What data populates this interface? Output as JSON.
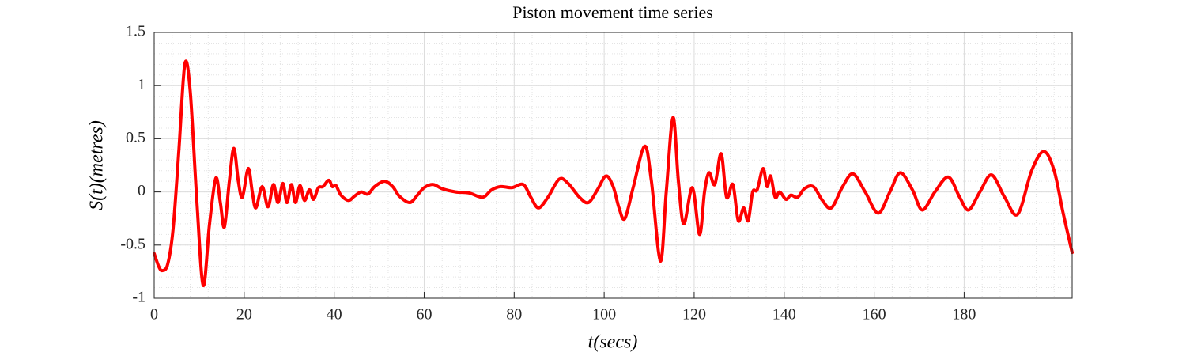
{
  "chart_data": {
    "type": "line",
    "title": "Piston movement time series",
    "x_label": "t(secs)",
    "y_label": "S(t)(metres)",
    "xlim": [
      0,
      204
    ],
    "ylim": [
      -1,
      1.5
    ],
    "xticks": [
      0,
      20,
      40,
      60,
      80,
      100,
      120,
      140,
      160,
      180
    ],
    "yticks": [
      -1,
      -0.5,
      0,
      0.5,
      1,
      1.5
    ],
    "grid": true,
    "minor_grid": true,
    "series": [
      {
        "color": "#ff0000",
        "x": [
          0,
          1,
          1.8,
          3,
          4.2,
          5.5,
          6.8,
          8,
          9.5,
          10.9,
          12.3,
          13.7,
          14.7,
          15.6,
          16.7,
          17.7,
          18.7,
          19.6,
          20.9,
          21.8,
          22.6,
          24,
          25.3,
          26.5,
          27.5,
          28.6,
          29.5,
          30.5,
          31.4,
          32.4,
          33.4,
          34.5,
          35.4,
          36.5,
          37.5,
          38.8,
          39.6,
          40.4,
          41.5,
          43.2,
          44.5,
          46,
          47.5,
          49,
          51.2,
          53,
          54.5,
          56.8,
          58.5,
          60,
          62,
          64,
          67,
          70,
          73,
          75,
          77,
          79.5,
          82,
          83.7,
          85.4,
          87.5,
          90,
          92,
          94.5,
          96.5,
          98.5,
          100.4,
          102,
          103.3,
          104.6,
          106.5,
          109,
          110.5,
          112.5,
          113.8,
          115.3,
          116.5,
          117.7,
          119.6,
          121.2,
          122.3,
          123.3,
          124.6,
          126,
          127.2,
          128.6,
          129.8,
          131,
          132,
          133,
          134,
          135.3,
          136.2,
          137,
          138,
          139,
          140.4,
          141.5,
          143,
          144.5,
          146.5,
          148.5,
          150.5,
          153,
          155.3,
          158,
          160.9,
          163.5,
          165.8,
          168.5,
          170.7,
          173.5,
          176.5,
          179,
          181,
          183.5,
          186.1,
          189,
          191.9,
          195,
          197.7,
          200,
          202,
          204
        ],
        "values": [
          -0.58,
          -0.7,
          -0.74,
          -0.68,
          -0.35,
          0.4,
          1.2,
          0.95,
          -0.1,
          -0.88,
          -0.3,
          0.13,
          -0.1,
          -0.33,
          0.1,
          0.41,
          0.1,
          -0.05,
          0.22,
          0.0,
          -0.15,
          0.05,
          -0.14,
          0.07,
          -0.1,
          0.08,
          -0.1,
          0.07,
          -0.1,
          0.06,
          -0.08,
          0.02,
          -0.07,
          0.04,
          0.05,
          0.11,
          0.05,
          0.06,
          -0.03,
          -0.08,
          -0.04,
          0.0,
          -0.02,
          0.05,
          0.1,
          0.05,
          -0.04,
          -0.1,
          -0.03,
          0.04,
          0.07,
          0.03,
          0.0,
          -0.01,
          -0.05,
          0.02,
          0.05,
          0.04,
          0.07,
          -0.05,
          -0.15,
          -0.05,
          0.12,
          0.08,
          -0.05,
          -0.1,
          0.02,
          0.15,
          0.05,
          -0.15,
          -0.25,
          0.05,
          0.43,
          0.1,
          -0.65,
          0.0,
          0.7,
          0.1,
          -0.3,
          0.04,
          -0.4,
          0.0,
          0.18,
          0.07,
          0.36,
          -0.05,
          0.07,
          -0.27,
          -0.15,
          -0.27,
          0.0,
          0.02,
          0.22,
          0.05,
          0.15,
          -0.05,
          0.0,
          -0.07,
          -0.03,
          -0.05,
          0.03,
          0.05,
          -0.08,
          -0.15,
          0.05,
          0.17,
          0.0,
          -0.2,
          0.0,
          0.18,
          0.02,
          -0.17,
          0.0,
          0.14,
          -0.05,
          -0.17,
          0.0,
          0.16,
          -0.05,
          -0.21,
          0.2,
          0.38,
          0.2,
          -0.2,
          -0.57
        ]
      }
    ]
  }
}
